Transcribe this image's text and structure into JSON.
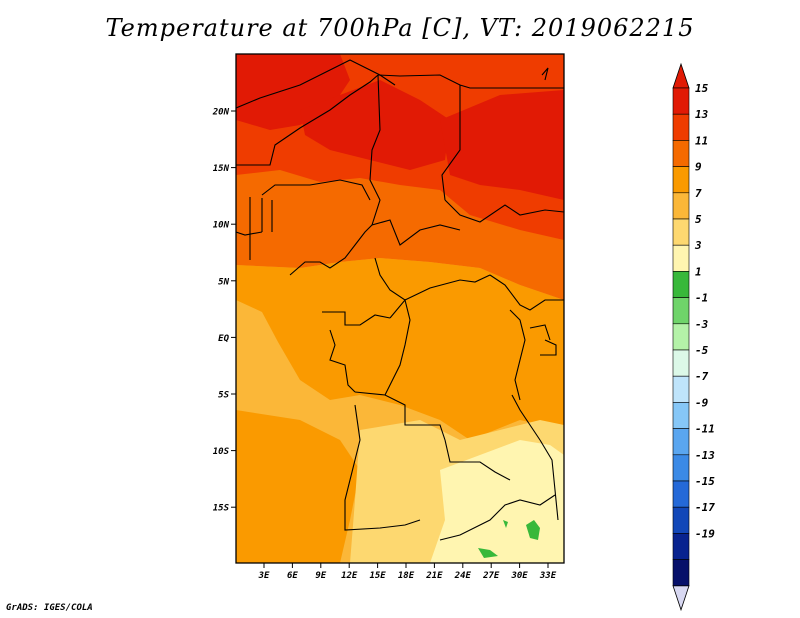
{
  "title": "Temperature at 700hPa [C], VT: 2019062215",
  "footer": "GrADS: IGES/COLA",
  "lat_labels": [
    "20N",
    "15N",
    "10N",
    "5N",
    "EQ",
    "5S",
    "10S",
    "15S"
  ],
  "lon_labels": [
    "3E",
    "6E",
    "9E",
    "12E",
    "15E",
    "18E",
    "21E",
    "24E",
    "27E",
    "30E",
    "33E"
  ],
  "colorbar": {
    "labels": [
      "15",
      "13",
      "11",
      "9",
      "7",
      "5",
      "3",
      "1",
      "-1",
      "-3",
      "-5",
      "-7",
      "-9",
      "-11",
      "-13",
      "-15",
      "-17",
      "-19"
    ],
    "colors": [
      "#e11a05",
      "#ef3c00",
      "#f56a00",
      "#fa9a00",
      "#fbb738",
      "#fdd870",
      "#fff5b0",
      "#38b83a",
      "#6fd46a",
      "#b4f2a8",
      "#dcf8e8",
      "#bfe4fb",
      "#86c7f7",
      "#5aa6f0",
      "#3b8ae6",
      "#2469d8",
      "#1247b8",
      "#08238f",
      "#06106a"
    ],
    "top_arrow_color": "#e11a05",
    "bottom_arrow_color": "#d8d8f2"
  },
  "map_colors": {
    "hot": "#e11a05",
    "red": "#ef3c00",
    "orange_red": "#f56a00",
    "orange": "#fa9a00",
    "light_orange": "#fbb738",
    "yellow": "#fdd870",
    "pale": "#fff5b0",
    "green": "#38b83a"
  }
}
